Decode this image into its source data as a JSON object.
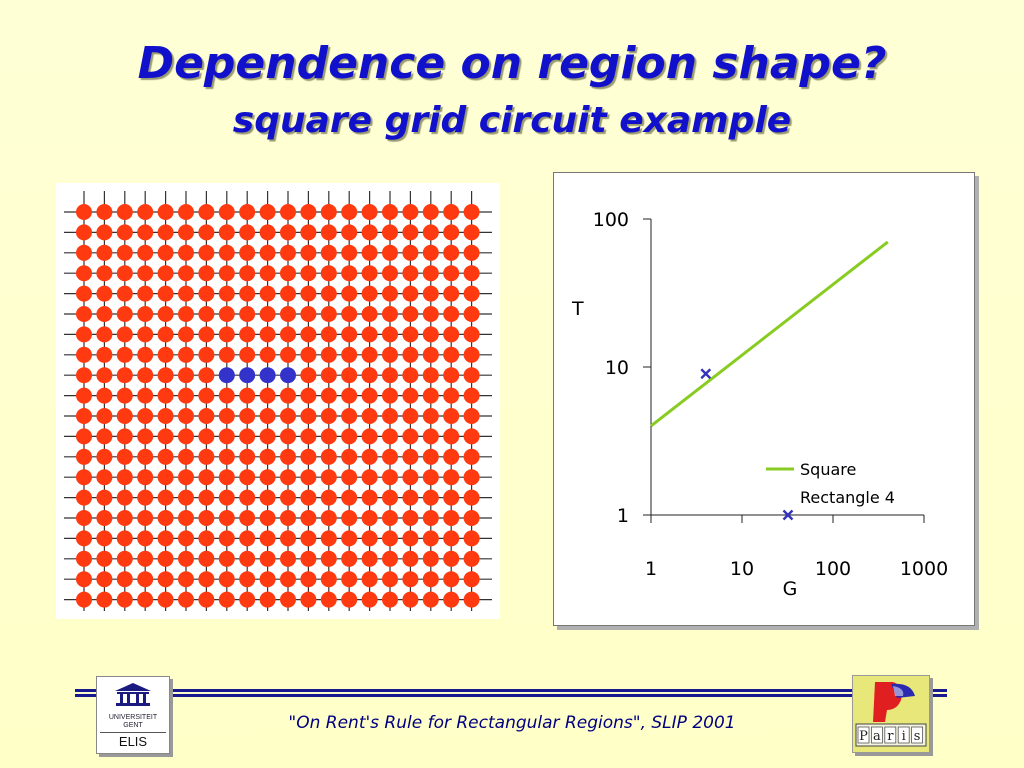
{
  "slide": {
    "title": "Dependence on region shape?",
    "subtitle": "square grid circuit example",
    "footer": "\"On Rent's Rule for Rectangular Regions\", SLIP 2001"
  },
  "grid_figure": {
    "rows": 20,
    "cols": 20,
    "node_color": "#ff3a10",
    "highlight_color": "#3333cc",
    "highlight_row": 8,
    "highlight_cols": [
      7,
      8,
      9,
      10
    ]
  },
  "chart_data": {
    "type": "line",
    "xscale": "log",
    "yscale": "log",
    "xlim": [
      1,
      1000
    ],
    "ylim": [
      1,
      100
    ],
    "xlabel": "G",
    "ylabel": "T",
    "x_ticks": [
      1,
      10,
      100,
      1000
    ],
    "x_tick_labels": [
      "1",
      "10",
      "100",
      "1000"
    ],
    "y_ticks": [
      1,
      10,
      100
    ],
    "y_tick_labels": [
      "1",
      "10",
      "100"
    ],
    "legend_position": "bottom-right",
    "series": [
      {
        "name": "Square",
        "style": "line",
        "color": "#88cc22",
        "points": [
          [
            1,
            4.0
          ],
          [
            400,
            70
          ]
        ]
      },
      {
        "name": "Rectangle 4",
        "style": "marker-x",
        "color": "#3333bb",
        "points": [
          [
            4,
            9
          ],
          [
            32,
            1
          ]
        ]
      }
    ]
  },
  "logos": {
    "left_text": [
      "UNIVERSITEIT",
      "GENT"
    ],
    "left_label": "ELIS",
    "right_letters": [
      "P",
      "a",
      "r",
      "i",
      "s"
    ]
  }
}
